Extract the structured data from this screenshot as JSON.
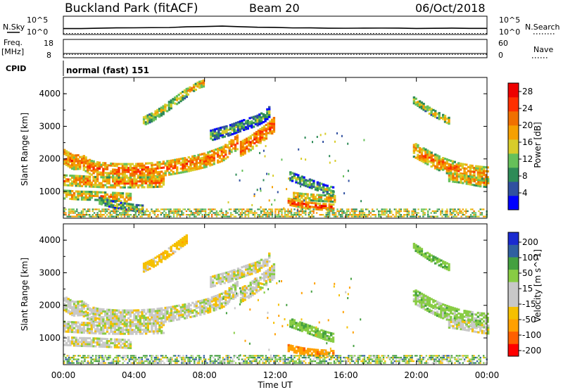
{
  "header": {
    "title": "Buckland Park (fitACF)",
    "beam": "Beam 20",
    "date": "06/Oct/2018"
  },
  "top_panel_labels": {
    "nsky": "N.Sky",
    "nsearch": "N.Search",
    "freq": "Freq.",
    "freq_unit": "[MHz]",
    "nave": "Nave",
    "cpid": "CPID",
    "cpid_text": "normal (fast) 151",
    "noise_ticks": [
      "10^5",
      "10^0"
    ],
    "freq_ticks": [
      "18",
      "8"
    ],
    "nave_ticks": [
      "60",
      "0"
    ]
  },
  "colors": {
    "power_scale": [
      "#0000ff",
      "#3050a0",
      "#2e8b57",
      "#66c05a",
      "#d8cc2a",
      "#f5a000",
      "#f07000",
      "#ff3000",
      "#ee0000"
    ],
    "velocity_scale": [
      "#ff0000",
      "#ff6000",
      "#ffa000",
      "#f5c000",
      "#c8c8c8",
      "#c8c8c8",
      "#88cc44",
      "#44a040",
      "#3060a0",
      "#1a2ad0"
    ]
  },
  "chart_data": [
    {
      "type": "line",
      "panel": "noise",
      "x": [
        0,
        1,
        2,
        3,
        4,
        5,
        6,
        7,
        8,
        9,
        10,
        11,
        12,
        13,
        14,
        15,
        16,
        17,
        18,
        19,
        20,
        21,
        22,
        23,
        24
      ],
      "series": [
        {
          "name": "N.Sky",
          "values": [
            1.6,
            1.65,
            1.7,
            1.75,
            1.8,
            1.85,
            1.95,
            2.05,
            2.15,
            2.25,
            2.1,
            2.0,
            1.9,
            1.85,
            1.8,
            1.75,
            1.75,
            1.7,
            1.7,
            1.7,
            1.7,
            1.7,
            1.7,
            1.7,
            1.7
          ]
        },
        {
          "name": "N.Search",
          "values": [
            0.3,
            0.3,
            0.3,
            0.3,
            0.3,
            0.3,
            0.3,
            0.3,
            0.3,
            0.3,
            0.3,
            0.3,
            0.3,
            0.3,
            0.3,
            0.3,
            0.3,
            0.3,
            0.3,
            0.3,
            0.3,
            0.3,
            0.3,
            0.3,
            0.3
          ]
        }
      ]
    },
    {
      "type": "line",
      "panel": "frequency",
      "x": [
        0,
        24
      ],
      "series": [
        {
          "name": "Freq.",
          "values": [
            10.3,
            10.3
          ]
        },
        {
          "name": "Nave",
          "values": [
            11,
            11
          ]
        }
      ]
    },
    {
      "type": "heatmap",
      "panel": "power",
      "xlabel": "",
      "ylabel": "Slant Range [km]",
      "xlim": [
        0,
        24
      ],
      "ylim": [
        180,
        4500
      ],
      "yticks": [
        1000,
        2000,
        3000,
        4000
      ],
      "colorbar": {
        "label": "Power [dB]",
        "range": [
          0,
          30
        ],
        "ticks": [
          4,
          8,
          12,
          16,
          20,
          24,
          28
        ]
      },
      "bands": [
        {
          "t": [
            0.0,
            0.5,
            1.0,
            1.5,
            2.0,
            3.0,
            4.0,
            5.0,
            6.0,
            7.0,
            8.0,
            9.0,
            9.8
          ],
          "r": [
            2050,
            1880,
            1900,
            1720,
            1660,
            1620,
            1620,
            1650,
            1720,
            1820,
            1950,
            2150,
            2500
          ],
          "w": 450,
          "p": 23
        },
        {
          "t": [
            0.0,
            1.0,
            2.0,
            3.0,
            4.0,
            5.0,
            5.7
          ],
          "r": [
            1320,
            1290,
            1260,
            1250,
            1250,
            1260,
            1280
          ],
          "w": 300,
          "p": 22
        },
        {
          "t": [
            0.0,
            0.8,
            1.6,
            2.4,
            3.2,
            3.8
          ],
          "r": [
            880,
            850,
            840,
            820,
            800,
            780
          ],
          "w": 240,
          "p": 20
        },
        {
          "t": [
            2.0,
            2.5,
            3.0,
            3.5,
            4.0,
            4.5
          ],
          "r": [
            700,
            620,
            560,
            520,
            480,
            460
          ],
          "w": 200,
          "p": 14
        },
        {
          "t": [
            4.5,
            5.0,
            5.5,
            6.0,
            6.5,
            7.0
          ],
          "r": [
            3150,
            3280,
            3450,
            3650,
            3850,
            4050
          ],
          "w": 280,
          "p": 16
        },
        {
          "t": [
            7.0,
            7.3,
            7.6,
            7.9
          ],
          "r": [
            4050,
            4150,
            4250,
            4300
          ],
          "w": 200,
          "p": 20
        },
        {
          "t": [
            8.3,
            8.8,
            9.3,
            9.8,
            10.3,
            10.9,
            11.4,
            11.7
          ],
          "r": [
            2700,
            2780,
            2850,
            2950,
            3050,
            3150,
            3300,
            3480
          ],
          "w": 320,
          "p": 12
        },
        {
          "t": [
            10.0,
            10.5,
            11.0,
            11.5,
            11.9
          ],
          "r": [
            2300,
            2450,
            2650,
            2850,
            3050
          ],
          "w": 450,
          "p": 25
        },
        {
          "t": [
            12.8,
            13.3,
            13.8,
            14.3,
            14.8,
            15.3
          ],
          "r": [
            1450,
            1350,
            1250,
            1150,
            1050,
            980
          ],
          "w": 260,
          "p": 13
        },
        {
          "t": [
            13.0,
            13.5,
            14.0,
            14.5,
            15.0,
            15.4
          ],
          "r": [
            850,
            820,
            800,
            780,
            770,
            750
          ],
          "w": 200,
          "p": 20
        },
        {
          "t": [
            12.7,
            13.2,
            13.7,
            14.2,
            14.7,
            15.3
          ],
          "r": [
            660,
            600,
            550,
            520,
            500,
            480
          ],
          "w": 180,
          "p": 26
        },
        {
          "t": [
            19.8,
            20.3,
            20.8,
            21.3,
            21.8
          ],
          "r": [
            3780,
            3600,
            3420,
            3280,
            3150
          ],
          "w": 200,
          "p": 18
        },
        {
          "t": [
            19.8,
            20.3,
            20.8,
            21.3,
            21.8,
            22.4,
            23.0,
            23.6,
            24.0
          ],
          "r": [
            2250,
            2100,
            1950,
            1820,
            1720,
            1620,
            1560,
            1520,
            1500
          ],
          "w": 420,
          "p": 22
        },
        {
          "t": [
            21.8,
            22.4,
            23.0,
            23.6,
            24.0
          ],
          "r": [
            1420,
            1380,
            1320,
            1260,
            1240
          ],
          "w": 260,
          "p": 20
        }
      ],
      "ground_scatter": {
        "t_range": [
          0,
          24
        ],
        "r_range": [
          200,
          460
        ],
        "p": 14
      }
    },
    {
      "type": "heatmap",
      "panel": "velocity",
      "xlabel": "Time UT",
      "ylabel": "Slant Range [km]",
      "xlim": [
        0,
        24
      ],
      "ylim": [
        180,
        4500
      ],
      "yticks": [
        1000,
        2000,
        3000,
        4000
      ],
      "xticks": [
        "00:00",
        "04:00",
        "08:00",
        "12:00",
        "16:00",
        "20:00",
        "00:00"
      ],
      "colorbar": {
        "label": "Velocity [m s^-1]",
        "ticks": [
          "200",
          "100",
          "50",
          "15",
          "-15",
          "-50",
          "-100",
          "-200"
        ]
      },
      "bands": [
        {
          "t": [
            0.0,
            0.5,
            1.0,
            1.5,
            2.0,
            3.0,
            4.0,
            5.0,
            6.0,
            7.0,
            8.0,
            9.0,
            9.8
          ],
          "r": [
            2050,
            1880,
            1900,
            1720,
            1660,
            1620,
            1620,
            1650,
            1720,
            1820,
            1950,
            2150,
            2500
          ],
          "w": 450,
          "v": 0
        },
        {
          "t": [
            0.0,
            1.0,
            2.0,
            3.0,
            4.0,
            5.0,
            5.7
          ],
          "r": [
            1320,
            1290,
            1260,
            1250,
            1250,
            1260,
            1280
          ],
          "w": 300,
          "v": 0
        },
        {
          "t": [
            0.0,
            0.8,
            1.6,
            2.4,
            3.2,
            3.8
          ],
          "r": [
            880,
            850,
            840,
            820,
            800,
            780
          ],
          "w": 240,
          "v": 0
        },
        {
          "t": [
            4.5,
            5.0,
            5.5,
            6.0,
            6.5,
            7.0
          ],
          "r": [
            3150,
            3280,
            3450,
            3650,
            3850,
            4050
          ],
          "w": 280,
          "v": -30
        },
        {
          "t": [
            8.3,
            8.8,
            9.3,
            9.8,
            10.3,
            10.9,
            11.4,
            11.7
          ],
          "r": [
            2700,
            2780,
            2850,
            2950,
            3050,
            3150,
            3300,
            3480
          ],
          "w": 320,
          "v": 0
        },
        {
          "t": [
            10.0,
            10.5,
            11.0,
            11.5,
            11.9
          ],
          "r": [
            2300,
            2450,
            2650,
            2850,
            3050
          ],
          "w": 450,
          "v": 0
        },
        {
          "t": [
            12.8,
            13.3,
            13.8,
            14.3,
            14.8,
            15.3
          ],
          "r": [
            1450,
            1350,
            1250,
            1150,
            1050,
            980
          ],
          "w": 260,
          "v": 40
        },
        {
          "t": [
            12.7,
            13.2,
            13.7,
            14.2,
            14.7,
            15.3
          ],
          "r": [
            660,
            600,
            550,
            520,
            500,
            480
          ],
          "w": 180,
          "v": -80
        },
        {
          "t": [
            19.8,
            20.3,
            20.8,
            21.3,
            21.8
          ],
          "r": [
            3780,
            3600,
            3420,
            3280,
            3150
          ],
          "w": 200,
          "v": 40
        },
        {
          "t": [
            19.8,
            20.3,
            20.8,
            21.3,
            21.8,
            22.4,
            23.0,
            23.6,
            24.0
          ],
          "r": [
            2250,
            2100,
            1950,
            1820,
            1720,
            1620,
            1560,
            1520,
            1500
          ],
          "w": 420,
          "v": 30
        },
        {
          "t": [
            21.8,
            22.4,
            23.0,
            23.6,
            24.0
          ],
          "r": [
            1420,
            1380,
            1320,
            1260,
            1240
          ],
          "w": 260,
          "v": 0
        }
      ],
      "ground_scatter": {
        "t_range": [
          0,
          24
        ],
        "r_range": [
          200,
          460
        ],
        "v": 40
      }
    }
  ]
}
